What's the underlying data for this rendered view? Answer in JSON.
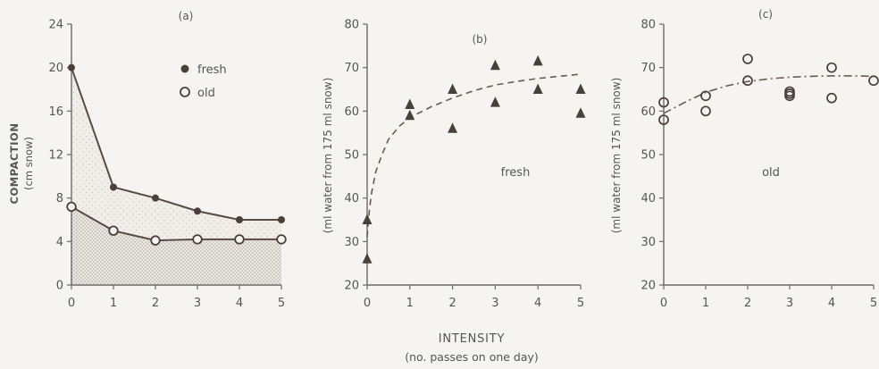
{
  "shared_xlabel": "INTENSITY",
  "shared_xlabel_sub": "(no. passes on one day)",
  "chart_data": [
    {
      "type": "line",
      "panel_label": "(a)",
      "ylabel": "COMPACTION",
      "ylabel_sub": "(cm snow)",
      "xlim": [
        0,
        5
      ],
      "ylim": [
        0,
        24
      ],
      "x_ticks": [
        0,
        1,
        2,
        3,
        4,
        5
      ],
      "y_ticks": [
        0,
        4,
        8,
        12,
        16,
        20,
        24
      ],
      "legend": [
        "fresh",
        "old"
      ],
      "series": [
        {
          "name": "fresh",
          "marker": "filled-circle",
          "x": [
            0,
            1,
            2,
            3,
            4,
            5
          ],
          "y": [
            20,
            9,
            8,
            6.8,
            6,
            6
          ]
        },
        {
          "name": "old",
          "marker": "open-circle",
          "x": [
            0,
            1,
            2,
            3,
            4,
            5
          ],
          "y": [
            7.2,
            5,
            4.1,
            4.2,
            4.2,
            4.2
          ]
        }
      ],
      "shaded_regions": "stippled area below each curve"
    },
    {
      "type": "scatter",
      "panel_label": "(b)",
      "ylabel": "(ml water from 175 ml snow)",
      "annotation": "fresh",
      "xlim": [
        0,
        5
      ],
      "ylim": [
        20,
        80
      ],
      "x_ticks": [
        0,
        1,
        2,
        3,
        4,
        5
      ],
      "y_ticks": [
        20,
        30,
        40,
        50,
        60,
        70,
        80
      ],
      "points": {
        "marker": "filled-triangle",
        "x": [
          0,
          0,
          1,
          1,
          2,
          2,
          3,
          3,
          4,
          4,
          5,
          5
        ],
        "y": [
          35,
          26,
          61.5,
          59,
          65,
          56,
          70.5,
          62,
          71.5,
          65,
          65,
          59.5
        ]
      },
      "fit_curve": {
        "style": "dashed",
        "x": [
          0,
          0.05,
          0.1,
          0.2,
          0.35,
          0.5,
          0.75,
          1,
          1.5,
          2,
          2.5,
          3,
          3.5,
          4,
          4.5,
          5
        ],
        "y": [
          31,
          37,
          41,
          46,
          50,
          53.5,
          56.5,
          58.5,
          61,
          63,
          64.7,
          66,
          66.8,
          67.5,
          68,
          68.5
        ]
      }
    },
    {
      "type": "scatter",
      "panel_label": "(c)",
      "ylabel": "(ml water from 175 ml snow)",
      "annotation": "old",
      "xlim": [
        0,
        5
      ],
      "ylim": [
        20,
        80
      ],
      "x_ticks": [
        0,
        1,
        2,
        3,
        4,
        5
      ],
      "y_ticks": [
        20,
        30,
        40,
        50,
        60,
        70,
        80
      ],
      "points": {
        "marker": "open-circle",
        "x": [
          0,
          0,
          1,
          1,
          2,
          2,
          3,
          3,
          3,
          4,
          4,
          5
        ],
        "y": [
          62,
          58,
          63.5,
          60,
          72,
          67,
          64.5,
          64,
          63.5,
          70,
          63,
          67
        ]
      },
      "fit_curve": {
        "style": "dash-dot",
        "x": [
          0,
          0.5,
          1,
          1.5,
          2,
          2.5,
          3,
          3.5,
          4,
          4.5,
          5
        ],
        "y": [
          59.5,
          62,
          64.3,
          65.8,
          66.8,
          67.4,
          67.8,
          68,
          68.1,
          68.1,
          68
        ]
      }
    }
  ]
}
